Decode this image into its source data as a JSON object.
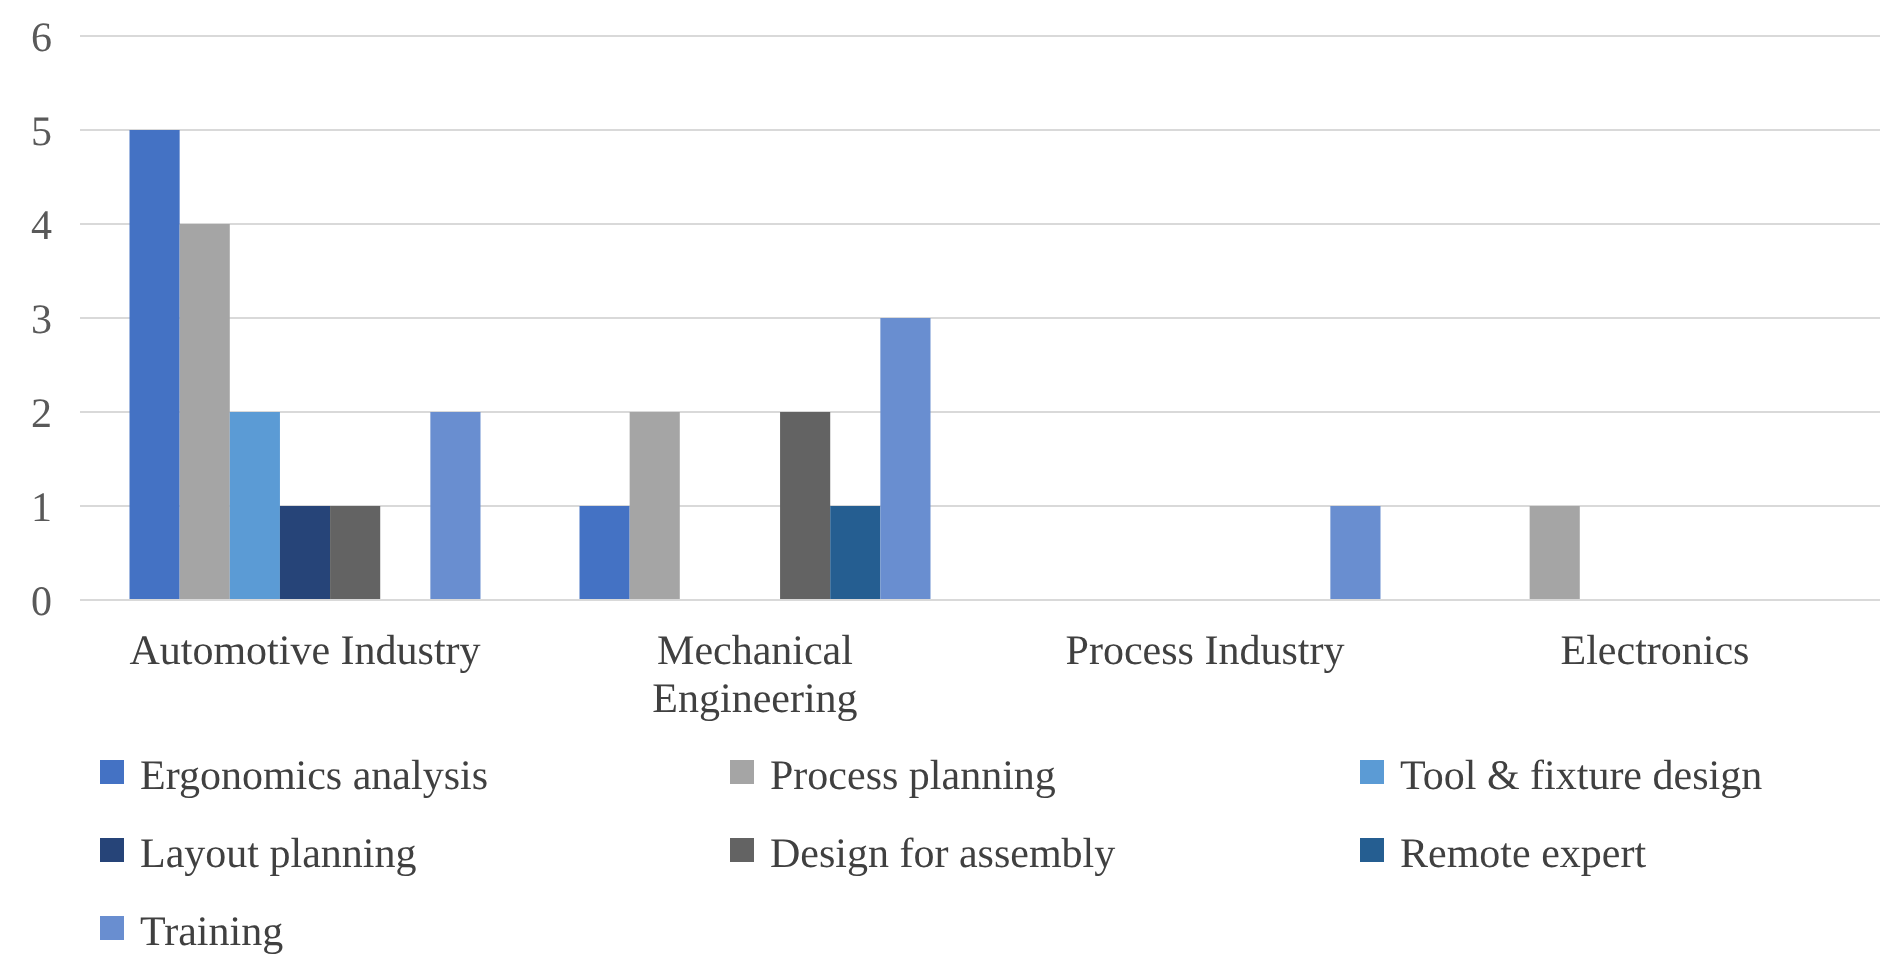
{
  "chart_data": {
    "type": "bar",
    "categories": [
      "Automotive Industry",
      "Mechanical Engineering",
      "Process Industry",
      "Electronics"
    ],
    "series": [
      {
        "name": "Ergonomics analysis",
        "color": "#4472c4",
        "values": [
          5,
          1,
          0,
          0
        ]
      },
      {
        "name": "Process planning",
        "color": "#a5a5a5",
        "values": [
          4,
          2,
          0,
          1
        ]
      },
      {
        "name": "Tool & fixture design",
        "color": "#5b9bd5",
        "values": [
          2,
          0,
          0,
          0
        ]
      },
      {
        "name": "Layout planning",
        "color": "#264478",
        "values": [
          1,
          0,
          0,
          0
        ]
      },
      {
        "name": "Design for assembly",
        "color": "#636363",
        "values": [
          1,
          2,
          0,
          0
        ]
      },
      {
        "name": "Remote expert",
        "color": "#255e91",
        "values": [
          0,
          1,
          0,
          0
        ]
      },
      {
        "name": "Training",
        "color": "#698ed0",
        "values": [
          2,
          3,
          1,
          0
        ]
      }
    ],
    "ylim": [
      0,
      6
    ],
    "yticks": [
      0,
      1,
      2,
      3,
      4,
      5,
      6
    ],
    "grid": "y",
    "legend": "bottom"
  }
}
